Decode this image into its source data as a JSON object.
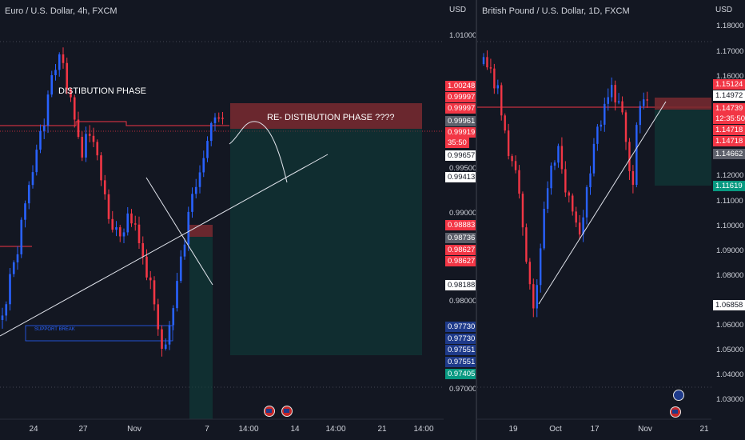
{
  "left_chart": {
    "title": "Euro / U.S. Dollar, 4h, FXCM",
    "currency": "USD",
    "axis_ticks": [
      "1.01000",
      "0.99500",
      "0.99000",
      "0.98000",
      "0.97000"
    ],
    "price_tags": [
      {
        "text": "1.00248",
        "bg": "#f23645",
        "fg": "#ffffff"
      },
      {
        "text": "0.99997",
        "bg": "#f23645",
        "fg": "#ffffff"
      },
      {
        "text": "0.99997",
        "bg": "#f23645",
        "fg": "#ffffff"
      },
      {
        "text": "0.99961",
        "bg": "#5d606b",
        "fg": "#ffffff"
      },
      {
        "text": "0.99919",
        "bg": "#f23645",
        "fg": "#ffffff"
      },
      {
        "text": "35:50",
        "bg": "#f23645",
        "fg": "#ffffff"
      },
      {
        "text": "0.99657",
        "bg": "#ffffff",
        "fg": "#131722"
      },
      {
        "text": "0.99413",
        "bg": "#ffffff",
        "fg": "#131722"
      },
      {
        "text": "0.98883",
        "bg": "#f23645",
        "fg": "#ffffff"
      },
      {
        "text": "0.98736",
        "bg": "#5d606b",
        "fg": "#ffffff"
      },
      {
        "text": "0.98627",
        "bg": "#f23645",
        "fg": "#ffffff"
      },
      {
        "text": "0.98627",
        "bg": "#f23645",
        "fg": "#ffffff"
      },
      {
        "text": "0.98188",
        "bg": "#ffffff",
        "fg": "#131722"
      },
      {
        "text": "0.97730",
        "bg": "#1e3a8a",
        "fg": "#ffffff"
      },
      {
        "text": "0.97730",
        "bg": "#1e3a8a",
        "fg": "#ffffff"
      },
      {
        "text": "0.97551",
        "bg": "#1e3a8a",
        "fg": "#ffffff"
      },
      {
        "text": "0.97551",
        "bg": "#1e3a8a",
        "fg": "#ffffff"
      },
      {
        "text": "0.97405",
        "bg": "#089981",
        "fg": "#ffffff"
      }
    ],
    "x_labels": [
      "24",
      "27",
      "Nov",
      "7",
      "14:00",
      "14",
      "14:00",
      "21",
      "14:00"
    ],
    "annotations": {
      "distribution": "DISTIBUTION PHASE",
      "redistribution": "RE- DISTIBUTION PHASE ????",
      "support_break": "SUPPORT BREAK"
    }
  },
  "right_chart": {
    "title": "British Pound / U.S. Dollar, 1D, FXCM",
    "currency": "USD",
    "axis_ticks": [
      "1.18000",
      "1.17000",
      "1.16000",
      "1.12000",
      "1.11000",
      "1.10000",
      "1.09000",
      "1.08000",
      "1.06000",
      "1.05000",
      "1.04000",
      "1.03000"
    ],
    "price_tags": [
      {
        "text": "1.15124",
        "bg": "#f23645",
        "fg": "#ffffff"
      },
      {
        "text": "1.14972",
        "bg": "#ffffff",
        "fg": "#131722"
      },
      {
        "text": "1.14739",
        "bg": "#f23645",
        "fg": "#ffffff"
      },
      {
        "text": "12:35:50",
        "bg": "#f23645",
        "fg": "#ffffff"
      },
      {
        "text": "1.14718",
        "bg": "#f23645",
        "fg": "#ffffff"
      },
      {
        "text": "1.14718",
        "bg": "#f23645",
        "fg": "#ffffff"
      },
      {
        "text": "1.14662",
        "bg": "#5d606b",
        "fg": "#ffffff"
      },
      {
        "text": "1.11619",
        "bg": "#089981",
        "fg": "#ffffff"
      },
      {
        "text": "1.06858",
        "bg": "#ffffff",
        "fg": "#131722"
      }
    ],
    "x_labels": [
      "19",
      "Oct",
      "17",
      "Nov",
      "21"
    ]
  },
  "colors": {
    "background": "#131722",
    "bull": "#2962ff",
    "bear": "#f23645",
    "grid": "#2a2e39",
    "text": "#d1d4dc"
  }
}
